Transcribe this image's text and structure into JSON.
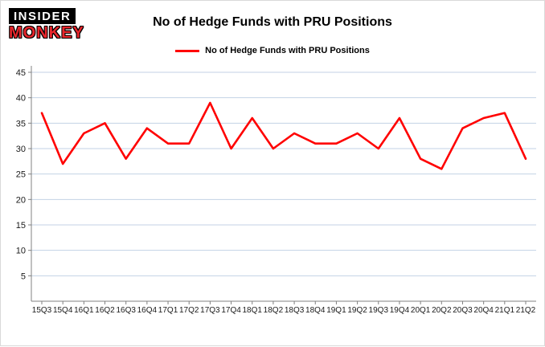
{
  "logo": {
    "line1": "INSIDER",
    "line2": "MONKEY"
  },
  "header": {
    "title": "No of Hedge Funds with PRU Positions"
  },
  "legend": {
    "label": "No of Hedge Funds with PRU Positions",
    "color": "#ff0000"
  },
  "chart_data": {
    "type": "line",
    "title": "No of Hedge Funds with PRU Positions",
    "categories": [
      "15Q3",
      "15Q4",
      "16Q1",
      "16Q2",
      "16Q3",
      "16Q4",
      "17Q1",
      "17Q2",
      "17Q3",
      "17Q4",
      "18Q1",
      "18Q2",
      "18Q3",
      "18Q4",
      "19Q1",
      "19Q2",
      "19Q3",
      "19Q4",
      "20Q1",
      "20Q2",
      "20Q3",
      "20Q4",
      "21Q1",
      "21Q2"
    ],
    "series": [
      {
        "name": "No of Hedge Funds with PRU Positions",
        "values": [
          37,
          27,
          33,
          35,
          28,
          34,
          31,
          31,
          39,
          30,
          36,
          30,
          33,
          31,
          31,
          33,
          30,
          36,
          28,
          26,
          34,
          36,
          37,
          28
        ]
      }
    ],
    "values": [
      37,
      27,
      33,
      35,
      28,
      34,
      31,
      31,
      39,
      30,
      36,
      30,
      33,
      31,
      31,
      33,
      30,
      36,
      28,
      26,
      34,
      36,
      37,
      28
    ],
    "xlabel": "",
    "ylabel": "",
    "ylim": [
      0,
      45
    ],
    "ytick_step": 5,
    "grid": true,
    "legend_position": "top",
    "line_color": "#ff0000"
  }
}
